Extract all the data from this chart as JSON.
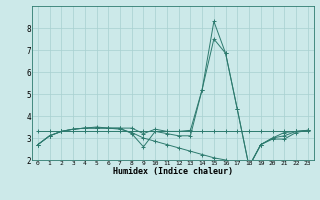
{
  "xlabel": "Humidex (Indice chaleur)",
  "x": [
    0,
    1,
    2,
    3,
    4,
    5,
    6,
    7,
    8,
    9,
    10,
    11,
    12,
    13,
    14,
    15,
    16,
    17,
    18,
    19,
    20,
    21,
    22,
    23
  ],
  "line1": [
    2.7,
    3.1,
    3.3,
    3.4,
    3.45,
    3.45,
    3.45,
    3.45,
    3.45,
    3.2,
    3.4,
    3.3,
    3.3,
    3.35,
    5.2,
    8.3,
    6.85,
    4.3,
    1.7,
    2.7,
    3.0,
    3.25,
    3.3,
    3.35
  ],
  "line2": [
    2.7,
    3.1,
    3.3,
    3.4,
    3.45,
    3.45,
    3.45,
    3.45,
    3.2,
    2.6,
    3.3,
    3.2,
    3.1,
    3.1,
    5.2,
    7.5,
    6.85,
    4.3,
    1.7,
    2.7,
    2.95,
    2.95,
    3.25,
    3.35
  ],
  "line3_flat": [
    3.3,
    3.3,
    3.3,
    3.3,
    3.3,
    3.3,
    3.3,
    3.3,
    3.3,
    3.3,
    3.3,
    3.3,
    3.3,
    3.3,
    3.3,
    3.3,
    3.3,
    3.3,
    3.3,
    3.3,
    3.3,
    3.3,
    3.3,
    3.3
  ],
  "line4": [
    2.7,
    3.1,
    3.3,
    3.4,
    3.45,
    3.5,
    3.45,
    3.4,
    3.25,
    3.0,
    2.85,
    2.7,
    2.55,
    2.4,
    2.25,
    2.1,
    2.0,
    1.85,
    1.72,
    2.7,
    3.0,
    3.1,
    3.3,
    3.35
  ],
  "color": "#2d7a6e",
  "bg_color": "#cce9e9",
  "grid_color": "#a8d0d0",
  "ylim": [
    2,
    9
  ],
  "xlim": [
    -0.5,
    23.5
  ],
  "yticks": [
    2,
    3,
    4,
    5,
    6,
    7,
    8
  ],
  "xticks": [
    0,
    1,
    2,
    3,
    4,
    5,
    6,
    7,
    8,
    9,
    10,
    11,
    12,
    13,
    14,
    15,
    16,
    17,
    18,
    19,
    20,
    21,
    22,
    23
  ]
}
